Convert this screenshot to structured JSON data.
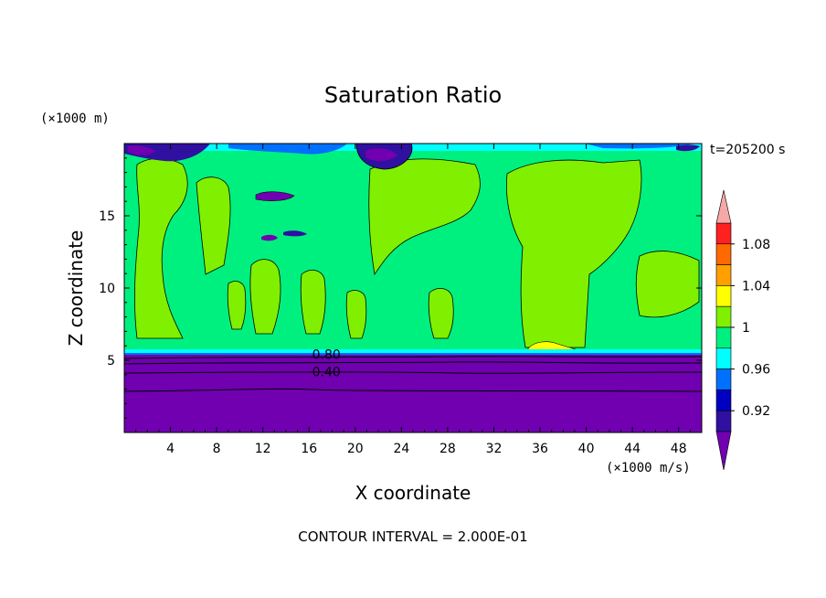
{
  "chart_data": {
    "type": "heatmap",
    "title": "Saturation Ratio",
    "xlabel": "X coordinate",
    "ylabel": "Z coordinate",
    "x_units": "(×1000 m/s)",
    "y_units": "(×1000 m)",
    "time_label": "t=205200 s",
    "footer": "CONTOUR INTERVAL = 2.000E-01",
    "xlim": [
      0,
      50
    ],
    "ylim": [
      0,
      20
    ],
    "x_ticks": [
      4,
      8,
      12,
      16,
      20,
      24,
      28,
      32,
      36,
      40,
      44,
      48
    ],
    "y_ticks": [
      5,
      10,
      15
    ],
    "contour_labels": [
      {
        "text": "0.80",
        "x": 17.5,
        "y": 5.4
      },
      {
        "text": "0.40",
        "x": 17.5,
        "y": 4.2
      }
    ],
    "colorbar": {
      "labels": [
        "1.08",
        "1.04",
        "1",
        "0.96",
        "0.92"
      ],
      "colors": [
        "#f5a8a8",
        "#ff2020",
        "#ff6a00",
        "#ffa000",
        "#ffff00",
        "#80f000",
        "#00f080",
        "#00ffff",
        "#0070ff",
        "#0000c0",
        "#3010a0",
        "#7000b0"
      ],
      "levels": [
        0.9,
        0.92,
        0.94,
        0.96,
        0.98,
        1.0,
        1.02,
        1.04,
        1.06,
        1.08,
        1.1
      ]
    },
    "regions": [
      {
        "name": "lower-layer",
        "value": 0.4,
        "color": "#7000b0",
        "z_range": [
          0,
          5.5
        ]
      },
      {
        "name": "upper-background",
        "value": 0.99,
        "color": "#00f080",
        "z_range": [
          5.6,
          20
        ]
      },
      {
        "name": "supersaturated-patches",
        "value": 1.01,
        "color": "#80f000"
      }
    ]
  }
}
